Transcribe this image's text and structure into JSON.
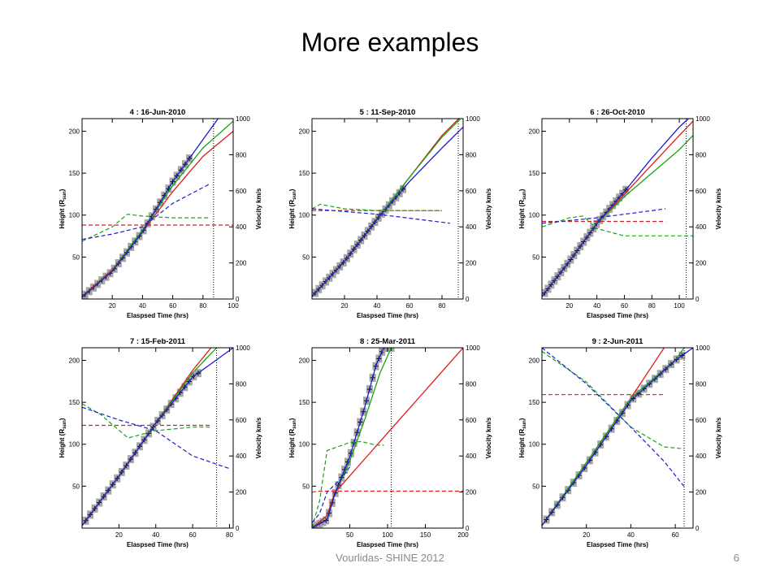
{
  "slide": {
    "title": "More examples",
    "footer": "Vourlidas- SHINE 2012",
    "page_number": "6"
  },
  "colors": {
    "red": "#e01b1b",
    "green": "#17a317",
    "blue": "#1a1ad6",
    "data_marker": "#a8a8a8",
    "cross": "#000000"
  },
  "chart_data": [
    {
      "type": "line",
      "title": "4 : 16-Jun-2010",
      "xlabel": "Elaspsed Time (hrs)",
      "ylabel": "Height (R",
      "ylabel_sub": "sun",
      "ylabel_end": ")",
      "y2label": "Velocity km/s",
      "xlim": [
        0,
        100
      ],
      "ylim": [
        0,
        215
      ],
      "y2lim": [
        0,
        1000
      ],
      "xticks": [
        20,
        40,
        60,
        80,
        100
      ],
      "xtick_labels": [
        "20",
        "40",
        "60",
        "80",
        "100"
      ],
      "yticks": [
        50,
        100,
        150,
        200
      ],
      "y2ticks": [
        0,
        200,
        400,
        600,
        800,
        1000
      ],
      "vline_x": 87,
      "height_obs": {
        "x_start": 2,
        "x_end": 71,
        "y_start": 5,
        "y_end": 170
      },
      "height_series": [
        {
          "name": "red",
          "x": [
            0,
            20,
            40,
            60,
            80,
            100
          ],
          "y": [
            3,
            35,
            80,
            128,
            170,
            200
          ]
        },
        {
          "name": "green",
          "x": [
            0,
            20,
            40,
            60,
            80,
            100
          ],
          "y": [
            2,
            34,
            82,
            135,
            180,
            212
          ]
        },
        {
          "name": "blue",
          "x": [
            0,
            20,
            40,
            60,
            80,
            90
          ],
          "y": [
            2,
            33,
            80,
            140,
            190,
            215
          ]
        }
      ],
      "velocity_series": [
        {
          "name": "red",
          "x": [
            0,
            100
          ],
          "y": [
            410,
            410
          ]
        },
        {
          "name": "green",
          "x": [
            0,
            20,
            30,
            40,
            60,
            85
          ],
          "y": [
            320,
            400,
            470,
            460,
            450,
            450
          ]
        },
        {
          "name": "blue",
          "x": [
            0,
            20,
            40,
            60,
            85
          ],
          "y": [
            330,
            360,
            400,
            530,
            640
          ]
        }
      ]
    },
    {
      "type": "line",
      "title": "5 : 11-Sep-2010",
      "xlabel": "Elaspsed Time (hrs)",
      "ylabel": "Height (R",
      "ylabel_sub": "sun",
      "ylabel_end": ")",
      "y2label": "Velocity km/s",
      "xlim": [
        0,
        93
      ],
      "ylim": [
        0,
        215
      ],
      "y2lim": [
        0,
        1000
      ],
      "xticks": [
        20,
        40,
        60,
        80
      ],
      "xtick_labels": [
        "20",
        "40",
        "60",
        "80"
      ],
      "yticks": [
        50,
        100,
        150,
        200
      ],
      "y2ticks": [
        0,
        200,
        400,
        600,
        800,
        1000
      ],
      "vline_x": 90,
      "height_obs": {
        "x_start": 2,
        "x_end": 56,
        "y_start": 5,
        "y_end": 150
      },
      "height_series": [
        {
          "name": "red",
          "x": [
            0,
            20,
            40,
            60,
            80,
            93
          ],
          "y": [
            3,
            45,
            95,
            145,
            195,
            220
          ]
        },
        {
          "name": "green",
          "x": [
            0,
            20,
            40,
            60,
            80,
            93
          ],
          "y": [
            3,
            45,
            95,
            145,
            193,
            218
          ]
        },
        {
          "name": "blue",
          "x": [
            0,
            20,
            40,
            60,
            80,
            93
          ],
          "y": [
            3,
            45,
            95,
            140,
            180,
            205
          ]
        }
      ],
      "velocity_series": [
        {
          "name": "red",
          "x": [
            0,
            80
          ],
          "y": [
            490,
            490
          ]
        },
        {
          "name": "green",
          "x": [
            0,
            5,
            20,
            40,
            80
          ],
          "y": [
            500,
            525,
            500,
            490,
            490
          ]
        },
        {
          "name": "blue",
          "x": [
            0,
            40,
            85
          ],
          "y": [
            500,
            470,
            420
          ]
        }
      ]
    },
    {
      "type": "line",
      "title": "6 : 26-Oct-2010",
      "xlabel": "Elaspsed Time (hrs)",
      "ylabel": "Height (R",
      "ylabel_sub": "sun",
      "ylabel_end": ")",
      "y2label": "Velocity km/s",
      "xlim": [
        0,
        110
      ],
      "ylim": [
        0,
        215
      ],
      "y2lim": [
        0,
        1000
      ],
      "xticks": [
        20,
        40,
        60,
        80,
        100
      ],
      "xtick_labels": [
        "20",
        "40",
        "60",
        "80",
        "100"
      ],
      "yticks": [
        50,
        100,
        150,
        200
      ],
      "y2ticks": [
        0,
        200,
        400,
        600,
        800,
        1000
      ],
      "vline_x": 105,
      "height_obs": {
        "x_start": 2,
        "x_end": 61,
        "y_start": 5,
        "y_end": 130
      },
      "height_series": [
        {
          "name": "red",
          "x": [
            0,
            20,
            40,
            60,
            80,
            100,
            110
          ],
          "y": [
            3,
            45,
            90,
            125,
            160,
            195,
            212
          ]
        },
        {
          "name": "green",
          "x": [
            0,
            20,
            40,
            60,
            80,
            100,
            110
          ],
          "y": [
            3,
            45,
            90,
            122,
            150,
            178,
            195
          ]
        },
        {
          "name": "blue",
          "x": [
            0,
            20,
            40,
            60,
            80,
            100,
            110
          ],
          "y": [
            3,
            45,
            90,
            128,
            168,
            205,
            220
          ]
        }
      ],
      "velocity_series": [
        {
          "name": "red",
          "x": [
            0,
            90
          ],
          "y": [
            430,
            430
          ]
        },
        {
          "name": "green",
          "x": [
            0,
            20,
            30,
            40,
            60,
            110
          ],
          "y": [
            400,
            450,
            460,
            390,
            350,
            350
          ]
        },
        {
          "name": "blue",
          "x": [
            0,
            40,
            90
          ],
          "y": [
            420,
            450,
            500
          ]
        }
      ]
    },
    {
      "type": "line",
      "title": "7 : 15-Feb-2011",
      "xlabel": "Elaspsed Time (hrs)",
      "ylabel": "Height (R",
      "ylabel_sub": "sun",
      "ylabel_end": ")",
      "y2label": "Velocity km/s",
      "xlim": [
        0,
        82
      ],
      "ylim": [
        0,
        215
      ],
      "y2lim": [
        0,
        1000
      ],
      "xticks": [
        20,
        40,
        60,
        80
      ],
      "xtick_labels": [
        "20",
        "40",
        "60",
        "80"
      ],
      "yticks": [
        50,
        100,
        150,
        200
      ],
      "y2ticks": [
        0,
        200,
        400,
        600,
        800,
        1000
      ],
      "vline_x": 73,
      "height_obs": {
        "x_start": 2,
        "x_end": 63,
        "y_start": 5,
        "y_end": 190
      },
      "height_series": [
        {
          "name": "red",
          "x": [
            0,
            20,
            40,
            60,
            70
          ],
          "y": [
            3,
            62,
            125,
            188,
            215
          ]
        },
        {
          "name": "green",
          "x": [
            0,
            20,
            40,
            60,
            73
          ],
          "y": [
            3,
            62,
            125,
            185,
            215
          ]
        },
        {
          "name": "blue",
          "x": [
            0,
            20,
            40,
            60,
            82
          ],
          "y": [
            3,
            62,
            125,
            180,
            215
          ]
        }
      ],
      "velocity_series": [
        {
          "name": "red",
          "x": [
            0,
            70
          ],
          "y": [
            570,
            570
          ]
        },
        {
          "name": "green",
          "x": [
            0,
            10,
            25,
            40,
            60,
            70
          ],
          "y": [
            690,
            630,
            500,
            540,
            560,
            560
          ]
        },
        {
          "name": "blue",
          "x": [
            0,
            20,
            40,
            60,
            80
          ],
          "y": [
            670,
            600,
            540,
            400,
            330
          ]
        }
      ]
    },
    {
      "type": "line",
      "title": "8 : 25-Mar-2011",
      "xlabel": "Elaspsed Time (hrs)",
      "ylabel": "Height (R",
      "ylabel_sub": "sun",
      "ylabel_end": ")",
      "y2label": "Velocity km/s",
      "xlim": [
        0,
        200
      ],
      "ylim": [
        0,
        215
      ],
      "y2lim": [
        0,
        1000
      ],
      "xticks": [
        50,
        100,
        150,
        200
      ],
      "xtick_labels": [
        "50",
        "100",
        "150",
        "200"
      ],
      "yticks": [
        50,
        100,
        150,
        200
      ],
      "y2ticks": [
        0,
        200,
        400,
        600,
        800,
        1000
      ],
      "vline_x": 105,
      "height_obs": {
        "x_start": 2,
        "x_end": 105,
        "y_start": 1,
        "y_end": 215
      },
      "height_series": [
        {
          "name": "red",
          "x": [
            0,
            20,
            30,
            200
          ],
          "y": [
            0,
            15,
            42,
            215
          ]
        },
        {
          "name": "green",
          "x": [
            0,
            20,
            30,
            50,
            70,
            90,
            105
          ],
          "y": [
            0,
            10,
            40,
            80,
            130,
            185,
            215
          ]
        },
        {
          "name": "blue",
          "x": [
            0,
            20,
            30,
            50,
            70,
            85,
            95
          ],
          "y": [
            0,
            10,
            40,
            85,
            145,
            195,
            215
          ]
        }
      ],
      "velocity_series": [
        {
          "name": "red",
          "x": [
            0,
            10,
            200
          ],
          "y": [
            200,
            205,
            205
          ]
        },
        {
          "name": "green",
          "x": [
            0,
            10,
            20,
            50,
            65,
            85,
            95
          ],
          "y": [
            0,
            150,
            430,
            475,
            480,
            460,
            460
          ]
        },
        {
          "name": "blue",
          "x": [
            0,
            10,
            20,
            40,
            50
          ],
          "y": [
            30,
            80,
            200,
            280,
            340
          ]
        }
      ]
    },
    {
      "type": "line",
      "title": "9 :  2-Jun-2011",
      "xlabel": "Elaspsed Time (hrs)",
      "ylabel": "Height (R",
      "ylabel_sub": "sun",
      "ylabel_end": ")",
      "y2label": "Velocity km/s",
      "xlim": [
        0,
        68
      ],
      "ylim": [
        0,
        215
      ],
      "y2lim": [
        0,
        1000
      ],
      "xticks": [
        20,
        40,
        60
      ],
      "xtick_labels": [
        "20",
        "40",
        "60"
      ],
      "yticks": [
        50,
        100,
        150,
        200
      ],
      "y2ticks": [
        0,
        200,
        400,
        600,
        800,
        1000
      ],
      "vline_x": 64,
      "height_obs": {
        "x_start": 2,
        "x_end": 63,
        "y_start": 5,
        "y_end": 212
      },
      "height_series": [
        {
          "name": "red",
          "x": [
            0,
            20,
            40,
            55
          ],
          "y": [
            3,
            78,
            155,
            215
          ]
        },
        {
          "name": "green",
          "x": [
            0,
            20,
            40,
            60,
            64
          ],
          "y": [
            3,
            78,
            155,
            200,
            215
          ]
        },
        {
          "name": "blue",
          "x": [
            0,
            20,
            40,
            60,
            68
          ],
          "y": [
            3,
            75,
            152,
            200,
            215
          ]
        }
      ],
      "velocity_series": [
        {
          "name": "red",
          "x": [
            0,
            55
          ],
          "y": [
            740,
            740
          ]
        },
        {
          "name": "green",
          "x": [
            0,
            20,
            40,
            55,
            64
          ],
          "y": [
            980,
            810,
            560,
            450,
            440
          ]
        },
        {
          "name": "blue",
          "x": [
            0,
            20,
            40,
            55,
            64
          ],
          "y": [
            1000,
            800,
            560,
            370,
            230
          ]
        }
      ]
    }
  ]
}
